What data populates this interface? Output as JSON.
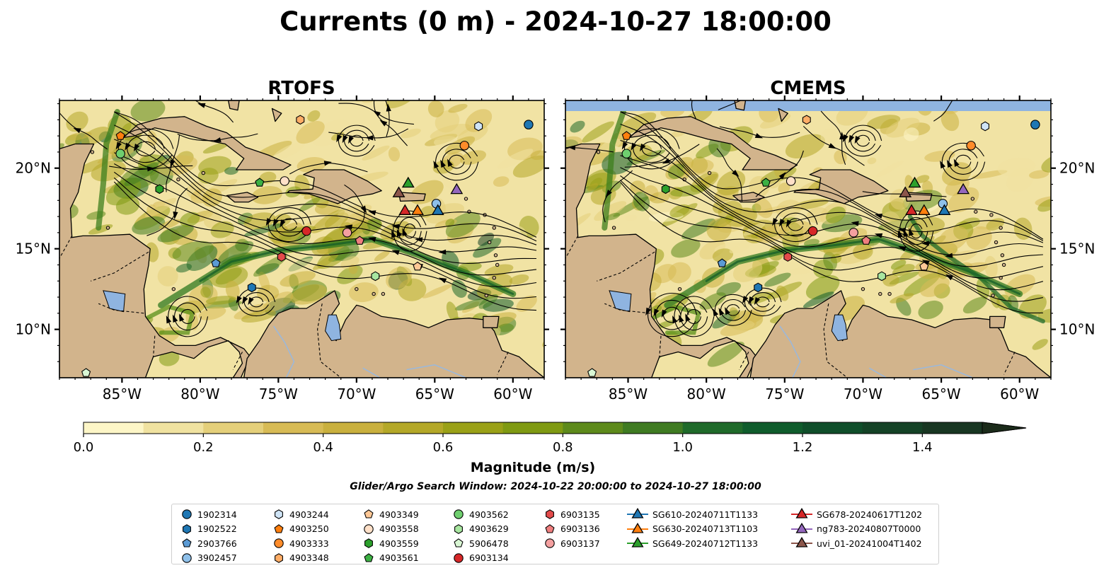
{
  "figure": {
    "title": "Currents (0 m) - 2024-10-27 18:00:00",
    "panel_titles": [
      "RTOFS",
      "CMEMS"
    ],
    "colorbar_label": "Magnitude (m/s)",
    "search_window": "Glider/Argo Search Window: 2024-10-22 20:00:00 to 2024-10-27 18:00:00"
  },
  "chart_data": {
    "type": "heatmap",
    "title": "Currents (0 m) - 2024-10-27 18:00:00",
    "panels": [
      "RTOFS",
      "CMEMS"
    ],
    "lon_range": [
      -89,
      -58
    ],
    "lat_range": [
      7,
      24.2
    ],
    "x_ticks": [
      "85°W",
      "80°W",
      "75°W",
      "70°W",
      "65°W",
      "60°W"
    ],
    "x_tick_values": [
      -85,
      -80,
      -75,
      -70,
      -65,
      -60
    ],
    "y_ticks": [
      "10°N",
      "15°N",
      "20°N"
    ],
    "y_tick_values": [
      10,
      15,
      20
    ],
    "colorbar": {
      "label": "Magnitude (m/s)",
      "range": [
        0,
        1.5
      ],
      "extend": "max",
      "ticks": [
        "0.0",
        "0.2",
        "0.4",
        "0.6",
        "0.8",
        "1.0",
        "1.2",
        "1.4"
      ],
      "tick_values": [
        0,
        0.2,
        0.4,
        0.6,
        0.8,
        1.0,
        1.2,
        1.4
      ],
      "colors": [
        "#fdf6c7",
        "#f0e2a0",
        "#e4cf7a",
        "#d7bb55",
        "#c9b03e",
        "#b4a828",
        "#9aa117",
        "#7f9a12",
        "#5d8a1b",
        "#3f7b22",
        "#1f6a2a",
        "#0f5c2c",
        "#0f4e2a",
        "#144226",
        "#183622",
        "#1b2b1a"
      ]
    },
    "land_color": "#d2b48c",
    "water_color": "#8fb4e0",
    "markers": [
      {
        "id": "1902314",
        "lon": -59.0,
        "lat": 22.7,
        "marker": "circle",
        "color": "#1f77b4"
      },
      {
        "id": "1902522",
        "lon": -76.7,
        "lat": 12.6,
        "marker": "hexagon",
        "color": "#1f77b4"
      },
      {
        "id": "2903766",
        "lon": -79.0,
        "lat": 14.1,
        "marker": "pentagon",
        "color": "#5b9bd5"
      },
      {
        "id": "3902457",
        "lon": -64.9,
        "lat": 17.8,
        "marker": "circle",
        "color": "#8ec0ea"
      },
      {
        "id": "4903244",
        "lon": -62.2,
        "lat": 22.6,
        "marker": "hexagon",
        "color": "#cfe4f6"
      },
      {
        "id": "4903250",
        "lon": -85.1,
        "lat": 22.0,
        "marker": "pentagon",
        "color": "#ff7f0e"
      },
      {
        "id": "4903333",
        "lon": -63.1,
        "lat": 21.4,
        "marker": "circle",
        "color": "#ff8c2a"
      },
      {
        "id": "4903348",
        "lon": -73.6,
        "lat": 23.0,
        "marker": "hexagon",
        "color": "#ffad66"
      },
      {
        "id": "4903349",
        "lon": -66.1,
        "lat": 13.9,
        "marker": "pentagon",
        "color": "#ffc896"
      },
      {
        "id": "4903558",
        "lon": -74.6,
        "lat": 19.2,
        "marker": "circle",
        "color": "#ffe0c8"
      },
      {
        "id": "4903559",
        "lon": -82.6,
        "lat": 18.7,
        "marker": "hexagon",
        "color": "#2ca02c"
      },
      {
        "id": "4903561",
        "lon": -76.2,
        "lat": 19.1,
        "marker": "pentagon",
        "color": "#3cb043"
      },
      {
        "id": "4903562",
        "lon": -85.1,
        "lat": 20.9,
        "marker": "circle",
        "color": "#6fcf6f"
      },
      {
        "id": "4903629",
        "lon": -68.8,
        "lat": 13.3,
        "marker": "hexagon",
        "color": "#a8e6a0"
      },
      {
        "id": "5906478",
        "lon": -87.3,
        "lat": 7.3,
        "marker": "pentagon",
        "color": "#d9f7d4"
      },
      {
        "id": "6903134",
        "lon": -73.2,
        "lat": 16.1,
        "marker": "circle",
        "color": "#d62728"
      },
      {
        "id": "6903135",
        "lon": -74.8,
        "lat": 14.5,
        "marker": "hexagon",
        "color": "#e34a4a"
      },
      {
        "id": "6903136",
        "lon": -69.8,
        "lat": 15.5,
        "marker": "pentagon",
        "color": "#f07f7f"
      },
      {
        "id": "6903137",
        "lon": -70.6,
        "lat": 16.0,
        "marker": "circle",
        "color": "#f4a0a0"
      },
      {
        "id": "SG610-20240711T1133",
        "lon": -64.8,
        "lat": 17.4,
        "marker": "triangle",
        "color": "#1f77b4"
      },
      {
        "id": "SG630-20240713T1103",
        "lon": -66.1,
        "lat": 17.4,
        "marker": "triangle",
        "color": "#ff7f0e"
      },
      {
        "id": "SG649-20240712T1133",
        "lon": -66.7,
        "lat": 19.1,
        "marker": "triangle",
        "color": "#2ca02c"
      },
      {
        "id": "SG678-20240617T1202",
        "lon": -66.9,
        "lat": 17.4,
        "marker": "triangle",
        "color": "#d62728"
      },
      {
        "id": "ng783-20240807T0000",
        "lon": -63.6,
        "lat": 18.7,
        "marker": "triangle",
        "color": "#9467bd"
      },
      {
        "id": "uvi_01-20241004T1402",
        "lon": -67.3,
        "lat": 18.5,
        "marker": "triangle",
        "color": "#8c564b"
      }
    ]
  },
  "legend": {
    "columns": [
      [
        {
          "label": "1902314",
          "marker": "circle",
          "color": "#1f77b4"
        },
        {
          "label": "1902522",
          "marker": "hexagon",
          "color": "#1f77b4"
        },
        {
          "label": "2903766",
          "marker": "pentagon",
          "color": "#5b9bd5"
        },
        {
          "label": "3902457",
          "marker": "circle",
          "color": "#8ec0ea"
        }
      ],
      [
        {
          "label": "4903244",
          "marker": "hexagon",
          "color": "#cfe4f6"
        },
        {
          "label": "4903250",
          "marker": "pentagon",
          "color": "#ff7f0e"
        },
        {
          "label": "4903333",
          "marker": "circle",
          "color": "#ff8c2a"
        },
        {
          "label": "4903348",
          "marker": "hexagon",
          "color": "#ffad66"
        }
      ],
      [
        {
          "label": "4903349",
          "marker": "pentagon",
          "color": "#ffc896"
        },
        {
          "label": "4903558",
          "marker": "circle",
          "color": "#ffe0c8"
        },
        {
          "label": "4903559",
          "marker": "hexagon",
          "color": "#2ca02c"
        },
        {
          "label": "4903561",
          "marker": "pentagon",
          "color": "#3cb043"
        }
      ],
      [
        {
          "label": "4903562",
          "marker": "circle",
          "color": "#6fcf6f"
        },
        {
          "label": "4903629",
          "marker": "hexagon",
          "color": "#a8e6a0"
        },
        {
          "label": "5906478",
          "marker": "pentagon",
          "color": "#d9f7d4"
        },
        {
          "label": "6903134",
          "marker": "circle",
          "color": "#d62728"
        }
      ],
      [
        {
          "label": "6903135",
          "marker": "hexagon",
          "color": "#e34a4a"
        },
        {
          "label": "6903136",
          "marker": "pentagon",
          "color": "#f07f7f"
        },
        {
          "label": "6903137",
          "marker": "circle",
          "color": "#f4a0a0"
        }
      ],
      [
        {
          "label": "SG610-20240711T1133",
          "marker": "triangle-line",
          "color": "#1f77b4"
        },
        {
          "label": "SG630-20240713T1103",
          "marker": "triangle-line",
          "color": "#ff7f0e"
        },
        {
          "label": "SG649-20240712T1133",
          "marker": "triangle-line",
          "color": "#2ca02c"
        }
      ],
      [
        {
          "label": "SG678-20240617T1202",
          "marker": "triangle-line",
          "color": "#d62728"
        },
        {
          "label": "ng783-20240807T0000",
          "marker": "triangle-line",
          "color": "#9467bd"
        },
        {
          "label": "uvi_01-20241004T1402",
          "marker": "triangle-line",
          "color": "#8c564b"
        }
      ]
    ]
  }
}
